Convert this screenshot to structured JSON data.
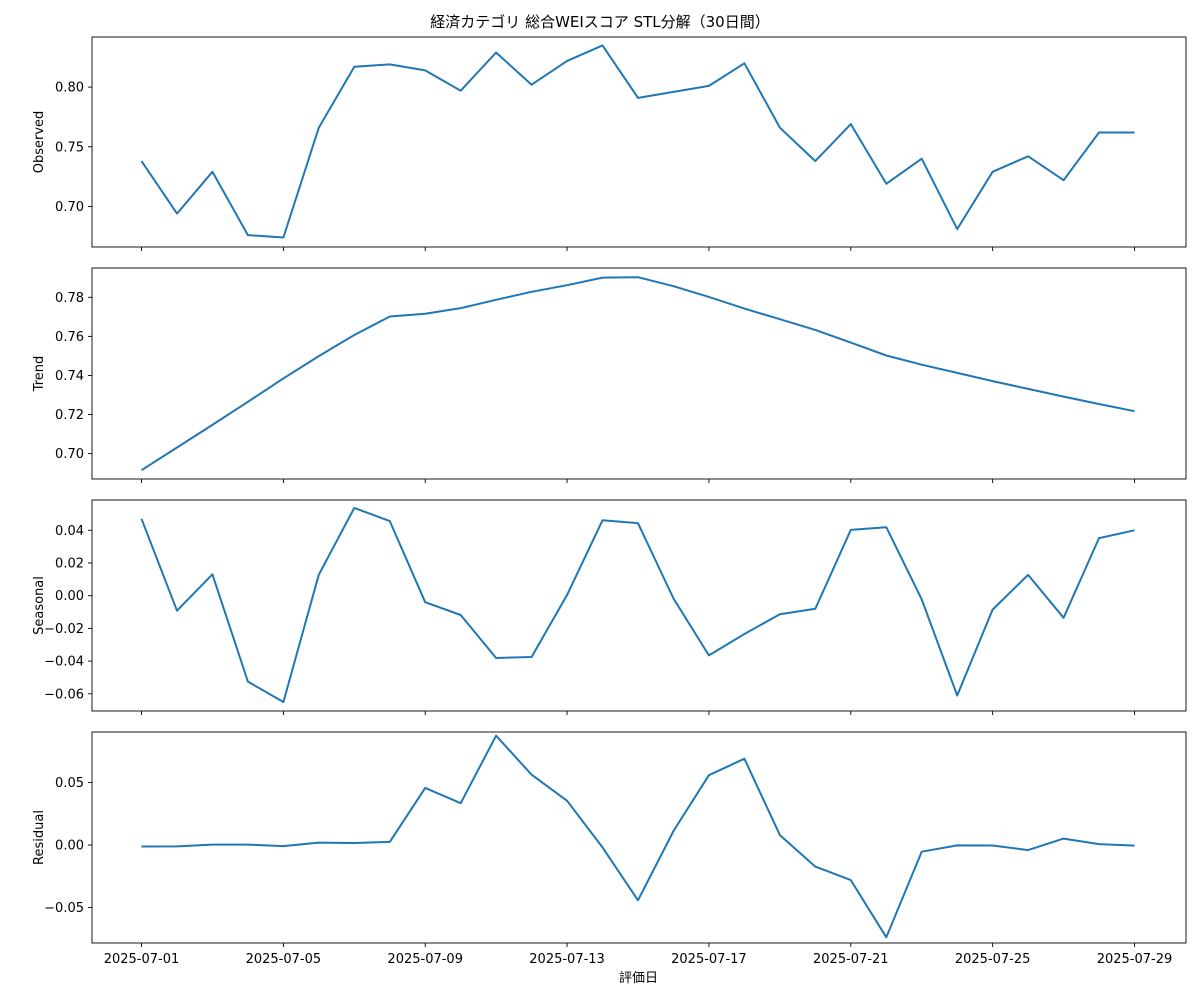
{
  "chart_data": {
    "type": "line",
    "title": "経済カテゴリ 総合WEIスコア STL分解（30日間）",
    "xlabel": "評価日",
    "x": [
      "2025-07-01",
      "2025-07-02",
      "2025-07-03",
      "2025-07-04",
      "2025-07-05",
      "2025-07-06",
      "2025-07-07",
      "2025-07-08",
      "2025-07-09",
      "2025-07-10",
      "2025-07-11",
      "2025-07-12",
      "2025-07-13",
      "2025-07-14",
      "2025-07-15",
      "2025-07-16",
      "2025-07-17",
      "2025-07-18",
      "2025-07-19",
      "2025-07-20",
      "2025-07-21",
      "2025-07-22",
      "2025-07-23",
      "2025-07-24",
      "2025-07-25",
      "2025-07-26",
      "2025-07-27",
      "2025-07-28",
      "2025-07-29"
    ],
    "x_ticks": [
      "2025-07-01",
      "2025-07-05",
      "2025-07-09",
      "2025-07-13",
      "2025-07-17",
      "2025-07-21",
      "2025-07-25",
      "2025-07-29"
    ],
    "line_color": "#1f77b4",
    "panels": [
      {
        "name": "observed",
        "ylabel": "Observed",
        "ylim": [
          0.666,
          0.842
        ],
        "yticks": [
          0.7,
          0.75,
          0.8
        ],
        "ytick_labels": [
          "0.70",
          "0.75",
          "0.80"
        ],
        "values": [
          0.738,
          0.694,
          0.729,
          0.676,
          0.674,
          0.766,
          0.817,
          0.819,
          0.814,
          0.797,
          0.829,
          0.802,
          0.822,
          0.835,
          0.791,
          0.796,
          0.801,
          0.82,
          0.766,
          0.738,
          0.769,
          0.719,
          0.74,
          0.681,
          0.729,
          0.742,
          0.722,
          0.762,
          0.762
        ]
      },
      {
        "name": "trend",
        "ylabel": "Trend",
        "ylim": [
          0.687,
          0.795
        ],
        "yticks": [
          0.7,
          0.72,
          0.74,
          0.76,
          0.78
        ],
        "ytick_labels": [
          "0.70",
          "0.72",
          "0.74",
          "0.76",
          "0.78"
        ],
        "values": [
          0.6915,
          0.7031,
          0.7147,
          0.7265,
          0.7385,
          0.7499,
          0.7607,
          0.7702,
          0.7716,
          0.7745,
          0.7787,
          0.7828,
          0.7862,
          0.7901,
          0.7903,
          0.7857,
          0.7802,
          0.7742,
          0.7688,
          0.7633,
          0.7568,
          0.7502,
          0.7455,
          0.7413,
          0.7371,
          0.7331,
          0.7292,
          0.7254,
          0.7217
        ]
      },
      {
        "name": "seasonal",
        "ylabel": "Seasonal",
        "ylim": [
          -0.0705,
          0.0585
        ],
        "yticks": [
          -0.06,
          -0.04,
          -0.02,
          0.0,
          0.02,
          0.04
        ],
        "ytick_labels": [
          "−0.06",
          "−0.04",
          "−0.02",
          "0.00",
          "0.02",
          "0.04"
        ],
        "values": [
          0.047,
          -0.0092,
          0.0131,
          -0.0525,
          -0.065,
          0.0128,
          0.0537,
          0.0456,
          -0.004,
          -0.0118,
          -0.0381,
          -0.0375,
          0.0005,
          0.0461,
          0.0443,
          -0.0017,
          -0.0365,
          -0.0234,
          -0.0113,
          -0.008,
          0.0402,
          0.0419,
          -0.0022,
          -0.061,
          -0.0085,
          0.0127,
          -0.0135,
          0.0352,
          0.04
        ]
      },
      {
        "name": "residual",
        "ylabel": "Residual",
        "ylim": [
          -0.0785,
          0.0905
        ],
        "yticks": [
          -0.05,
          0.0,
          0.05
        ],
        "ytick_labels": [
          "−0.05",
          "0.00",
          "0.05"
        ],
        "values": [
          -0.0012,
          -0.0011,
          0.0003,
          0.0003,
          -0.0009,
          0.0019,
          0.0016,
          0.0025,
          0.0457,
          0.0335,
          0.0875,
          0.0563,
          0.0354,
          -0.0019,
          -0.0443,
          0.0112,
          0.0559,
          0.0691,
          0.0079,
          -0.0173,
          -0.0281,
          -0.0739,
          -0.0054,
          -0.0003,
          -0.0004,
          -0.0041,
          0.0051,
          0.0007,
          -0.0005
        ]
      }
    ],
    "grid": false
  }
}
